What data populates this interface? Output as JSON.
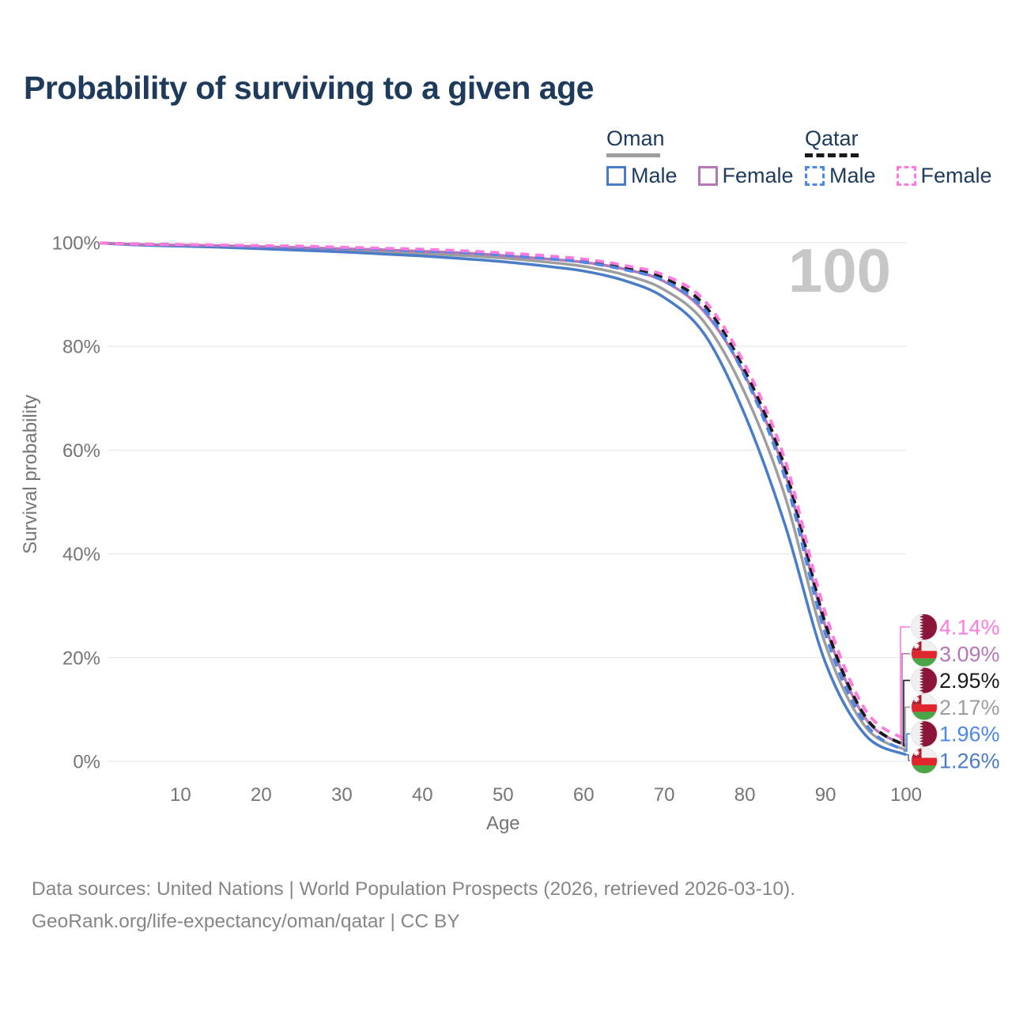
{
  "title": "Probability of surviving to a given age",
  "watermark_age": "100",
  "legend": {
    "groups": [
      {
        "name": "Oman",
        "line_style": "solid",
        "line_color": "#9e9e9e",
        "items": [
          {
            "label": "Male",
            "color": "#4a7cc7",
            "box_style": "solid"
          },
          {
            "label": "Female",
            "color": "#b577b5",
            "box_style": "solid"
          }
        ]
      },
      {
        "name": "Qatar",
        "line_style": "dashed",
        "line_color": "#1a1a1a",
        "items": [
          {
            "label": "Male",
            "color": "#4d87e8",
            "box_style": "dashed"
          },
          {
            "label": "Female",
            "color": "#ff7ade",
            "box_style": "dashed"
          }
        ]
      }
    ]
  },
  "chart_data": {
    "type": "line",
    "title": "Probability of surviving to a given age",
    "xlabel": "Age",
    "ylabel": "Survival probability",
    "xlim": [
      0,
      100
    ],
    "ylim": [
      0,
      100
    ],
    "grid": "horizontal",
    "legend_position": "top-right",
    "x_ticks": [
      10,
      20,
      30,
      40,
      50,
      60,
      70,
      80,
      90,
      100
    ],
    "y_ticks": [
      {
        "v": 0,
        "label": "0%"
      },
      {
        "v": 20,
        "label": "20%"
      },
      {
        "v": 40,
        "label": "40%"
      },
      {
        "v": 60,
        "label": "60%"
      },
      {
        "v": 80,
        "label": "80%"
      },
      {
        "v": 100,
        "label": "100%"
      }
    ],
    "x": [
      0,
      5,
      10,
      15,
      20,
      25,
      30,
      35,
      40,
      45,
      50,
      55,
      60,
      65,
      70,
      75,
      80,
      85,
      90,
      95,
      100
    ],
    "series": [
      {
        "name": "Oman",
        "flag": "oman",
        "color": "#9e9e9e",
        "dash": "solid",
        "end_label": "2.17%",
        "values": [
          99.9,
          99.6,
          99.4,
          99.2,
          99.0,
          98.8,
          98.5,
          98.2,
          97.9,
          97.5,
          97.0,
          96.3,
          95.4,
          93.8,
          90.9,
          84.6,
          71.0,
          51.0,
          22.5,
          6.6,
          2.17
        ]
      },
      {
        "name": "Oman Male",
        "flag": "oman",
        "color": "#4a7cc7",
        "dash": "solid",
        "end_label": "1.26%",
        "values": [
          99.9,
          99.5,
          99.3,
          99.1,
          98.8,
          98.5,
          98.2,
          97.8,
          97.4,
          96.9,
          96.3,
          95.5,
          94.5,
          92.7,
          89.4,
          82.3,
          66.8,
          45.5,
          19.0,
          5.0,
          1.26
        ]
      },
      {
        "name": "Oman Female",
        "flag": "oman",
        "color": "#b577b5",
        "dash": "solid",
        "end_label": "3.09%",
        "values": [
          99.9,
          99.6,
          99.5,
          99.4,
          99.2,
          99.0,
          98.8,
          98.6,
          98.3,
          98.0,
          97.5,
          96.9,
          96.2,
          94.9,
          92.5,
          86.6,
          74.4,
          55.5,
          26.0,
          8.2,
          3.09
        ]
      },
      {
        "name": "Qatar",
        "flag": "qatar",
        "color": "#1a1a1a",
        "dash": "dashed",
        "end_label": "2.95%",
        "values": [
          99.9,
          99.7,
          99.6,
          99.4,
          99.3,
          99.2,
          99.0,
          98.8,
          98.5,
          98.2,
          97.8,
          97.2,
          96.5,
          95.2,
          93.1,
          87.9,
          75.3,
          56.5,
          26.5,
          8.5,
          2.95
        ]
      },
      {
        "name": "Qatar Male",
        "flag": "qatar",
        "color": "#4d87e8",
        "dash": "dashed",
        "end_label": "1.96%",
        "values": [
          99.9,
          99.6,
          99.5,
          99.4,
          99.2,
          99.1,
          98.9,
          98.7,
          98.4,
          98.1,
          97.6,
          97.0,
          96.2,
          94.8,
          92.6,
          87.1,
          74.2,
          54.5,
          24.5,
          7.2,
          1.96
        ]
      },
      {
        "name": "Qatar Female",
        "flag": "qatar",
        "color": "#ff7ade",
        "dash": "dashed",
        "end_label": "4.14%",
        "values": [
          99.9,
          99.7,
          99.6,
          99.5,
          99.4,
          99.3,
          99.1,
          98.9,
          98.7,
          98.4,
          98.0,
          97.5,
          96.8,
          95.6,
          93.7,
          88.8,
          76.5,
          58.0,
          28.5,
          9.8,
          4.14
        ]
      }
    ]
  },
  "footer": {
    "line1": "Data sources: United Nations | World Population Prospects (2026, retrieved 2026-03-10).",
    "line2": "GeoRank.org/life-expectancy/oman/qatar | CC BY"
  }
}
